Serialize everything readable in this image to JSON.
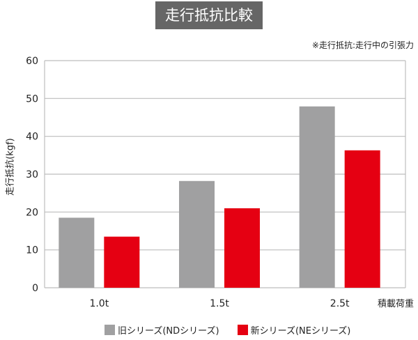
{
  "chart_data": {
    "type": "bar",
    "title": "走行抵抗比較",
    "note": "※走行抵抗:走行中の引張力",
    "xlabel": "積載荷重",
    "ylabel": "走行抵抗(kgf)",
    "categories": [
      "1.0t",
      "1.5t",
      "2.5t"
    ],
    "ylim": [
      0,
      60
    ],
    "yticks": [
      "0",
      "10",
      "20",
      "30",
      "40",
      "50",
      "60"
    ],
    "grid": true,
    "legend_position": "bottom",
    "series": [
      {
        "name": "旧シリーズ(NDシリーズ)",
        "color": "#a0a0a1",
        "values": [
          18.5,
          28.2,
          47.9
        ]
      },
      {
        "name": "新シリーズ(NEシリーズ)",
        "color": "#e50012",
        "values": [
          13.5,
          21.0,
          36.3
        ]
      }
    ]
  }
}
